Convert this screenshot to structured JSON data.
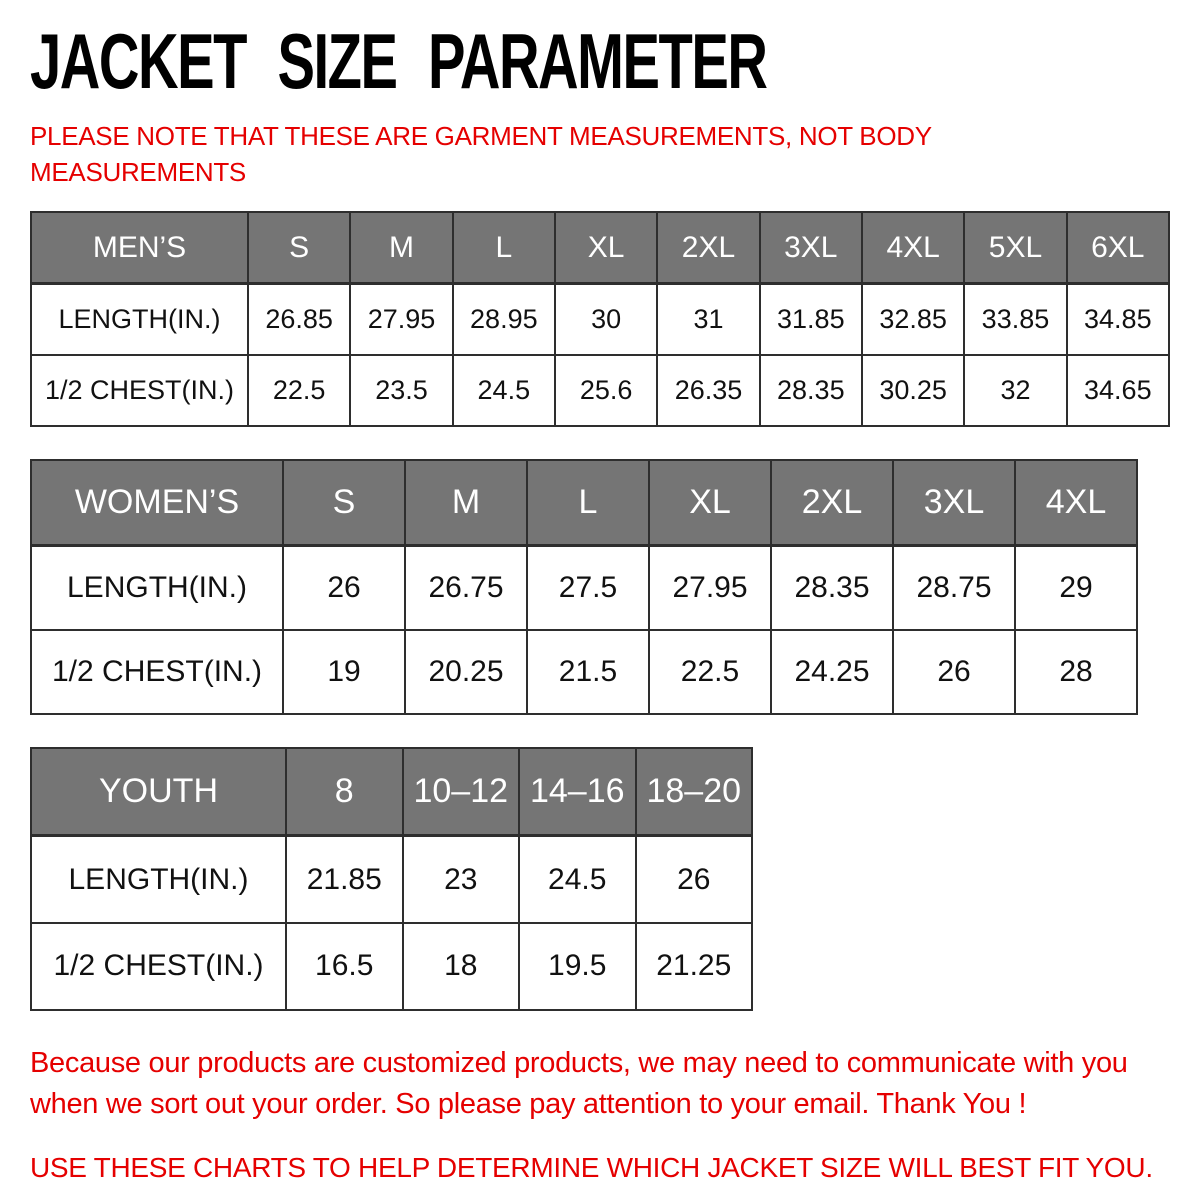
{
  "title": "JACKET SIZE PARAMETER",
  "note": "PLEASE NOTE THAT THESE ARE GARMENT MEASUREMENTS, NOT BODY MEASUREMENTS",
  "tables": [
    {
      "id": "mens",
      "name": "MEN’S",
      "sizes": [
        "S",
        "M",
        "L",
        "XL",
        "2XL",
        "3XL",
        "4XL",
        "5XL",
        "6XL"
      ],
      "rows": [
        {
          "label": "LENGTH(IN.)",
          "values": [
            "26.85",
            "27.95",
            "28.95",
            "30",
            "31",
            "31.85",
            "32.85",
            "33.85",
            "34.85"
          ]
        },
        {
          "label": "1/2 CHEST(IN.)",
          "values": [
            "22.5",
            "23.5",
            "24.5",
            "25.6",
            "26.35",
            "28.35",
            "30.25",
            "32",
            "34.65"
          ]
        }
      ]
    },
    {
      "id": "womens",
      "name": "WOMEN’S",
      "sizes": [
        "S",
        "M",
        "L",
        "XL",
        "2XL",
        "3XL",
        "4XL"
      ],
      "rows": [
        {
          "label": "LENGTH(IN.)",
          "values": [
            "26",
            "26.75",
            "27.5",
            "27.95",
            "28.35",
            "28.75",
            "29"
          ]
        },
        {
          "label": "1/2 CHEST(IN.)",
          "values": [
            "19",
            "20.25",
            "21.5",
            "22.5",
            "24.25",
            "26",
            "28"
          ]
        }
      ]
    },
    {
      "id": "youth",
      "name": "YOUTH",
      "sizes": [
        "8",
        "10–12",
        "14–16",
        "18–20"
      ],
      "rows": [
        {
          "label": "LENGTH(IN.)",
          "values": [
            "21.85",
            "23",
            "24.5",
            "26"
          ]
        },
        {
          "label": "1/2 CHEST(IN.)",
          "values": [
            "16.5",
            "18",
            "19.5",
            "21.25"
          ]
        }
      ]
    }
  ],
  "footer": {
    "customization_notice": "Because our products are customized products, we may need to communicate with you when we sort out your order. So please pay attention to your email. Thank You !",
    "fit_advice": "USE THESE CHARTS TO HELP DETERMINE WHICH JACKET SIZE WILL BEST FIT YOU."
  },
  "colors": {
    "accent_red": "#e50000",
    "header_fill": "#757575",
    "header_text": "#ffffff",
    "cell_border": "#2e2e2e"
  },
  "chart_data": [
    {
      "type": "table",
      "title": "MEN’S",
      "columns": [
        "MEN’S",
        "S",
        "M",
        "L",
        "XL",
        "2XL",
        "3XL",
        "4XL",
        "5XL",
        "6XL"
      ],
      "rows": [
        [
          "LENGTH(IN.)",
          26.85,
          27.95,
          28.95,
          30,
          31,
          31.85,
          32.85,
          33.85,
          34.85
        ],
        [
          "1/2 CHEST(IN.)",
          22.5,
          23.5,
          24.5,
          25.6,
          26.35,
          28.35,
          30.25,
          32,
          34.65
        ]
      ]
    },
    {
      "type": "table",
      "title": "WOMEN’S",
      "columns": [
        "WOMEN’S",
        "S",
        "M",
        "L",
        "XL",
        "2XL",
        "3XL",
        "4XL"
      ],
      "rows": [
        [
          "LENGTH(IN.)",
          26,
          26.75,
          27.5,
          27.95,
          28.35,
          28.75,
          29
        ],
        [
          "1/2 CHEST(IN.)",
          19,
          20.25,
          21.5,
          22.5,
          24.25,
          26,
          28
        ]
      ]
    },
    {
      "type": "table",
      "title": "YOUTH",
      "columns": [
        "YOUTH",
        "8",
        "10–12",
        "14–16",
        "18–20"
      ],
      "rows": [
        [
          "LENGTH(IN.)",
          21.85,
          23,
          24.5,
          26
        ],
        [
          "1/2 CHEST(IN.)",
          16.5,
          18,
          19.5,
          21.25
        ]
      ]
    }
  ]
}
